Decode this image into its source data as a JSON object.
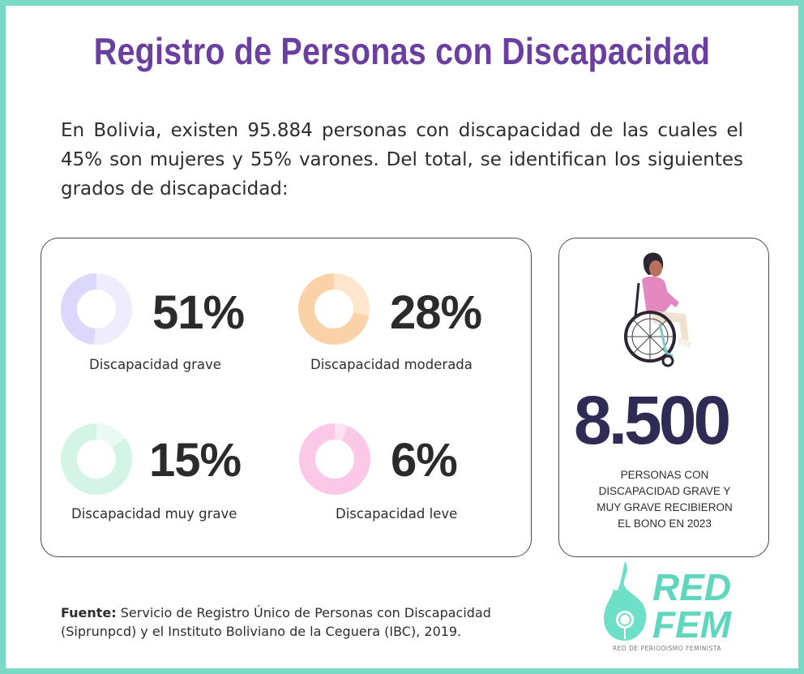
{
  "title": "Registro de Personas con Discapacidad",
  "intro": "En Bolivia, existen 95.884 personas con discapacidad de las cuales el 45% son mujeres y 55% varones. Del total, se identifican los siguientes grados de discapacidad:",
  "chart_data": {
    "type": "pie",
    "categories": [
      "Discapacidad grave",
      "Discapacidad moderada",
      "Discapacidad muy grave",
      "Discapacidad leve"
    ],
    "values": [
      51,
      28,
      15,
      6
    ],
    "value_labels": [
      "51%",
      "28%",
      "15%",
      "6%"
    ],
    "colors": [
      "#dcd8fb",
      "#fbd2a8",
      "#d4f4e6",
      "#fbc8e8"
    ],
    "colors_light": [
      "#eeecfd",
      "#fde6cd",
      "#e9faf2",
      "#fde2f3"
    ]
  },
  "highlight": {
    "number": "8.500",
    "caption_lines": [
      "PERSONAS CON",
      "DISCAPACIDAD GRAVE Y",
      "MUY GRAVE RECIBIERON",
      "EL BONO EN 2023"
    ]
  },
  "source": {
    "label": "Fuente:",
    "text_line1": "Servicio de Registro Único de Personas con Discapacidad",
    "text_line2": "(Siprunpcd) y el Instituto Boliviano de la Ceguera (IBC), 2019."
  },
  "logo": {
    "line1": "RED",
    "line2": "FEM",
    "tagline": "RED DE PERIODISMO FEMINISTA"
  },
  "colors": {
    "border": "#7ad9c4",
    "title": "#6b3fa0",
    "big_number": "#2e2b55",
    "logo": "#5fd6bd"
  }
}
